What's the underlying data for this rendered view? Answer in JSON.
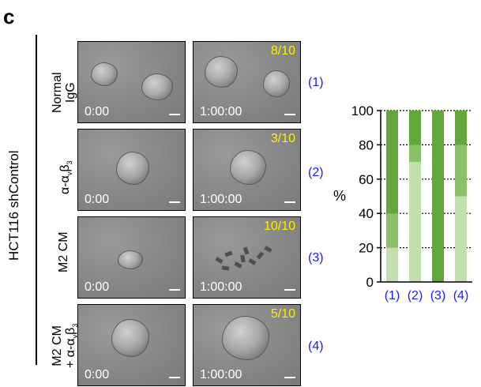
{
  "panel_letter": "c",
  "side_label": "HCT116 shControl",
  "rows": [
    {
      "condition_line1": "Normal",
      "condition_line2": "IgG",
      "time_start": "0:00",
      "time_end": "1:00:00",
      "ratio": "8/10",
      "number": "(1)"
    },
    {
      "condition_line1": "α-α",
      "condition_line2": "",
      "time_start": "0:00",
      "time_end": "1:00:00",
      "ratio": "3/10",
      "number": "(2)"
    },
    {
      "condition_line1": "M2 CM",
      "condition_line2": "",
      "time_start": "0:00",
      "time_end": "1:00:00",
      "ratio": "10/10",
      "number": "(3)"
    },
    {
      "condition_line1": "M2 CM",
      "condition_line2": "+ α-α",
      "time_start": "0:00",
      "time_end": "1:00:00",
      "ratio": "5/10",
      "number": "(4)"
    }
  ],
  "colors": {
    "dark_green": "#62a73b",
    "mid_green": "#8cc16a",
    "light_green": "#c3dfb0",
    "label_blue": "#1a1aff",
    "ratio_yellow": "#ffef00"
  },
  "chart_data": {
    "type": "bar",
    "stacked": true,
    "categories": [
      "(1)",
      "(2)",
      "(3)",
      "(4)"
    ],
    "ylabel": "%",
    "ylim": [
      0,
      100
    ],
    "yticks": [
      "0",
      "20",
      "40",
      "60",
      "80",
      "100"
    ],
    "gridlines": "dotted",
    "series": [
      {
        "values": [
          20,
          70,
          0,
          50
        ],
        "color": "#c3dfb0"
      },
      {
        "values": [
          20,
          10,
          0,
          30
        ],
        "color": "#8cc16a"
      },
      {
        "values": [
          60,
          20,
          100,
          20
        ],
        "color": "#62a73b"
      }
    ]
  }
}
